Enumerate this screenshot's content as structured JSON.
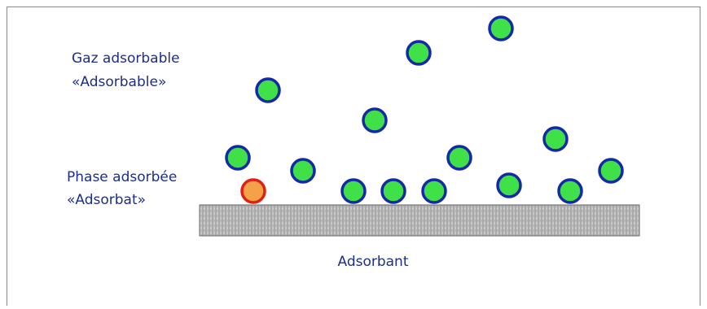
{
  "labels": {
    "gas_title": "Gaz adsorbable",
    "gas_subtitle": "«Adsorbable»",
    "phase_title": "Phase adsorbée",
    "phase_subtitle": "«Adsorbat»",
    "surface": "Adsorbant"
  }
}
